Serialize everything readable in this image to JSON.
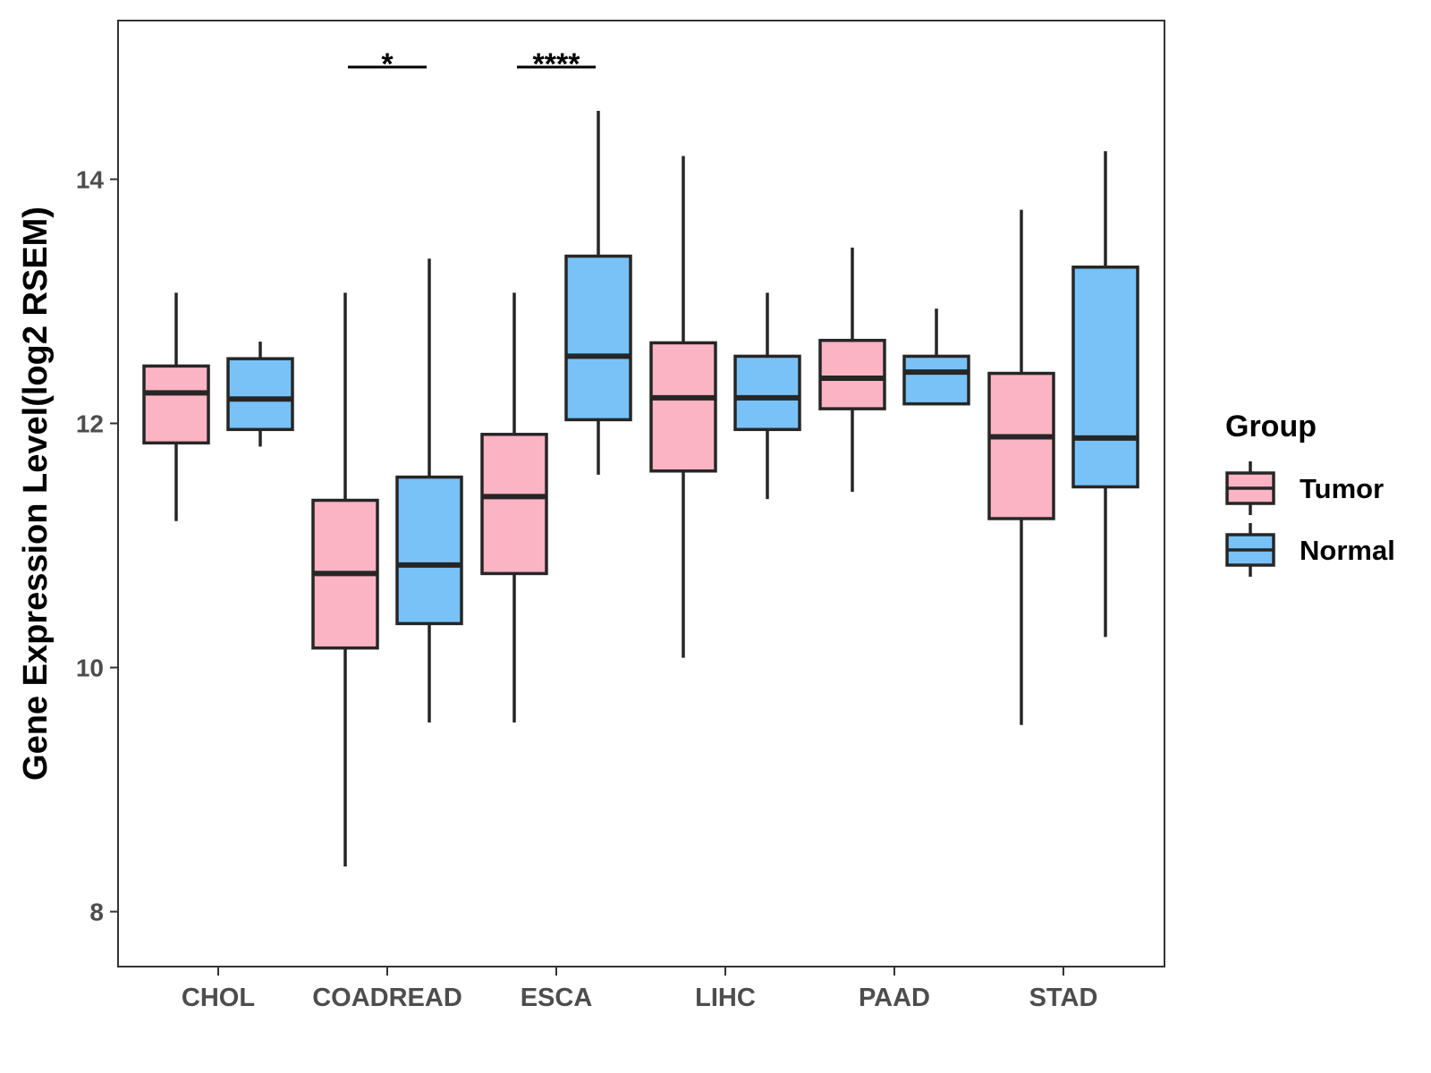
{
  "chart_data": {
    "type": "boxplot",
    "title": "",
    "xlabel": "",
    "ylabel": "Gene Expression Level(log2 RSEM)",
    "ylim": [
      7.55,
      15.3
    ],
    "yticks": [
      8,
      10,
      12,
      14
    ],
    "categories": [
      "CHOL",
      "COADREAD",
      "ESCA",
      "LIHC",
      "PAAD",
      "STAD"
    ],
    "legend": {
      "title": "Group",
      "position": "right",
      "entries": [
        {
          "name": "Tumor",
          "color": "#FBB4C4"
        },
        {
          "name": "Normal",
          "color": "#78C2F8"
        }
      ]
    },
    "series": [
      {
        "name": "Tumor",
        "color": "#FBB4C4",
        "boxes": [
          {
            "category": "CHOL",
            "min": 11.2,
            "q1": 11.84,
            "median": 12.25,
            "q3": 12.47,
            "max": 13.07
          },
          {
            "category": "COADREAD",
            "min": 8.37,
            "q1": 10.16,
            "median": 10.77,
            "q3": 11.37,
            "max": 13.07
          },
          {
            "category": "ESCA",
            "min": 9.55,
            "q1": 10.77,
            "median": 11.4,
            "q3": 11.91,
            "max": 13.07
          },
          {
            "category": "LIHC",
            "min": 10.08,
            "q1": 11.61,
            "median": 12.21,
            "q3": 12.66,
            "max": 14.19
          },
          {
            "category": "PAAD",
            "min": 11.44,
            "q1": 12.12,
            "median": 12.37,
            "q3": 12.68,
            "max": 13.44
          },
          {
            "category": "STAD",
            "min": 9.53,
            "q1": 11.22,
            "median": 11.89,
            "q3": 12.41,
            "max": 13.75
          }
        ]
      },
      {
        "name": "Normal",
        "color": "#78C2F8",
        "boxes": [
          {
            "category": "CHOL",
            "min": 11.81,
            "q1": 11.95,
            "median": 12.2,
            "q3": 12.53,
            "max": 12.67
          },
          {
            "category": "COADREAD",
            "min": 9.55,
            "q1": 10.36,
            "median": 10.84,
            "q3": 11.56,
            "max": 13.35
          },
          {
            "category": "ESCA",
            "min": 11.58,
            "q1": 12.03,
            "median": 12.55,
            "q3": 13.37,
            "max": 14.56
          },
          {
            "category": "LIHC",
            "min": 11.38,
            "q1": 11.95,
            "median": 12.21,
            "q3": 12.55,
            "max": 13.07
          },
          {
            "category": "PAAD",
            "min": 12.16,
            "q1": 12.16,
            "median": 12.42,
            "q3": 12.55,
            "max": 12.94
          },
          {
            "category": "STAD",
            "min": 10.25,
            "q1": 11.48,
            "median": 11.88,
            "q3": 13.28,
            "max": 14.23
          }
        ]
      }
    ],
    "annotations": [
      {
        "category": "COADREAD",
        "label": "*"
      },
      {
        "category": "ESCA",
        "label": "****"
      }
    ],
    "grid": false
  }
}
